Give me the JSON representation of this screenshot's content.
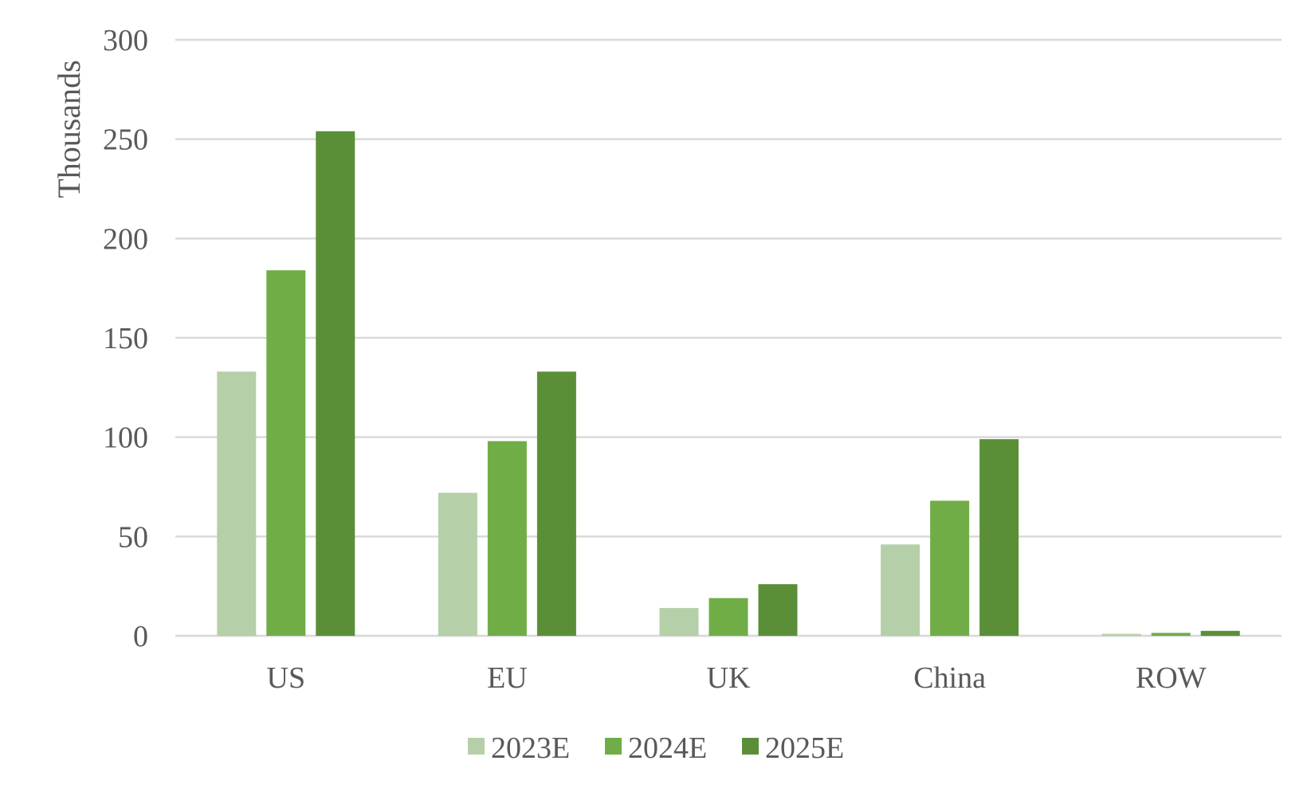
{
  "chart_data": {
    "type": "bar",
    "title": "",
    "xlabel": "",
    "ylabel": "Thousands",
    "ylim": [
      0,
      300
    ],
    "yticks": [
      0,
      50,
      100,
      150,
      200,
      250,
      300
    ],
    "grid": true,
    "legend_position": "bottom",
    "categories": [
      "US",
      "EU",
      "UK",
      "China",
      "ROW"
    ],
    "series": [
      {
        "name": "2023E",
        "color": "#b5d0a8",
        "values": [
          133,
          72,
          14,
          46,
          1
        ]
      },
      {
        "name": "2024E",
        "color": "#70ad47",
        "values": [
          184,
          98,
          19,
          68,
          1.5
        ]
      },
      {
        "name": "2025E",
        "color": "#5a8f38",
        "values": [
          254,
          133,
          26,
          99,
          2.5
        ]
      }
    ]
  }
}
